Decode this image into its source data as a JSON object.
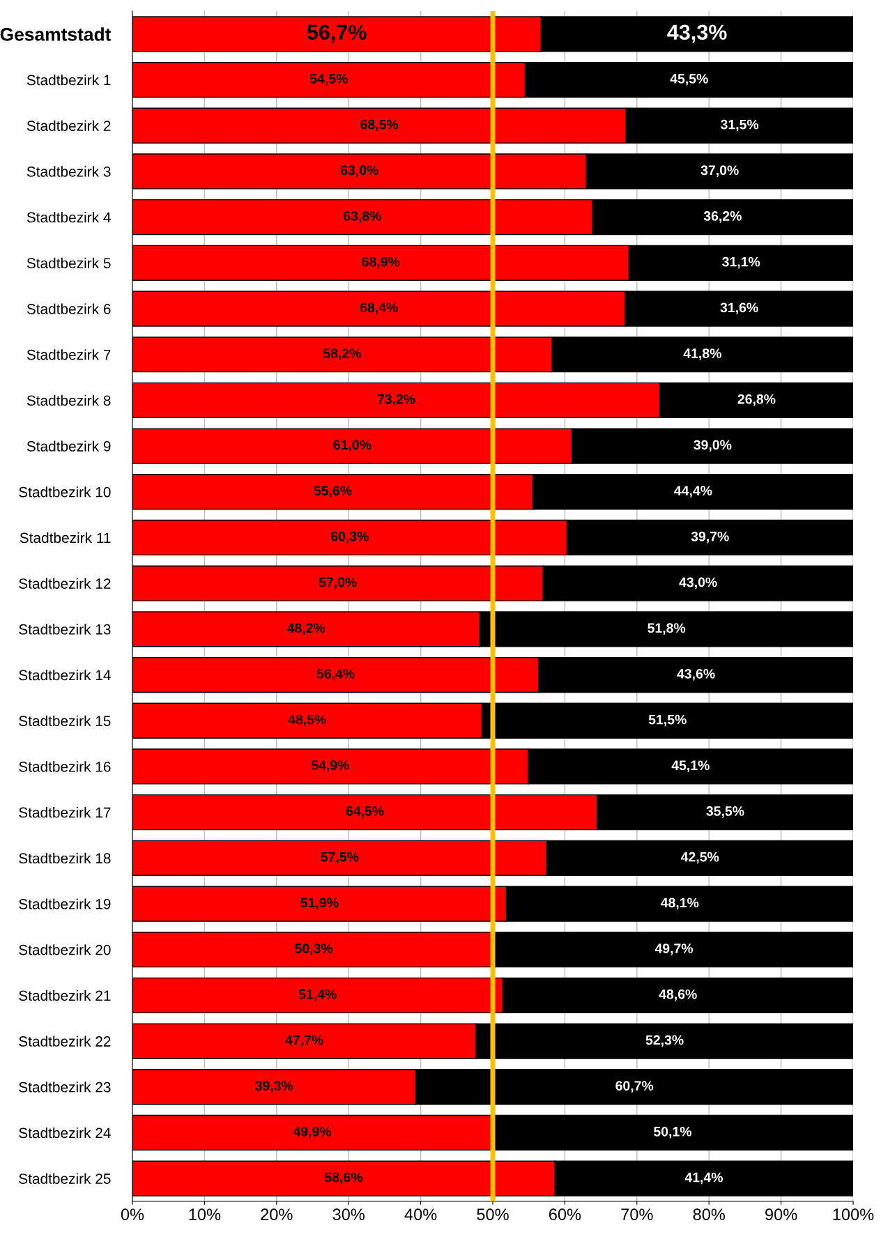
{
  "chart_data": {
    "type": "bar",
    "orientation": "horizontal",
    "stacked": true,
    "categories": [
      "Gesamtstadt",
      "Stadtbezirk 1",
      "Stadtbezirk 2",
      "Stadtbezirk 3",
      "Stadtbezirk 4",
      "Stadtbezirk 5",
      "Stadtbezirk 6",
      "Stadtbezirk 7",
      "Stadtbezirk 8",
      "Stadtbezirk 9",
      "Stadtbezirk 10",
      "Stadtbezirk 11",
      "Stadtbezirk 12",
      "Stadtbezirk 13",
      "Stadtbezirk 14",
      "Stadtbezirk 15",
      "Stadtbezirk 16",
      "Stadtbezirk 17",
      "Stadtbezirk 18",
      "Stadtbezirk 19",
      "Stadtbezirk 20",
      "Stadtbezirk 21",
      "Stadtbezirk 22",
      "Stadtbezirk 23",
      "Stadtbezirk 24",
      "Stadtbezirk 25"
    ],
    "series": [
      {
        "color": "#ff0000",
        "values": [
          56.7,
          54.5,
          68.5,
          63.0,
          63.8,
          68.9,
          68.4,
          58.2,
          73.2,
          61.0,
          55.6,
          60.3,
          57.0,
          48.2,
          56.4,
          48.5,
          54.9,
          64.5,
          57.5,
          51.9,
          50.3,
          51.4,
          47.7,
          39.3,
          49.9,
          58.6
        ],
        "value_labels": [
          "56,7%",
          "54,5%",
          "68,5%",
          "63,0%",
          "63,8%",
          "68,9%",
          "68,4%",
          "58,2%",
          "73,2%",
          "61,0%",
          "55,6%",
          "60,3%",
          "57,0%",
          "48,2%",
          "56,4%",
          "48,5%",
          "54,9%",
          "64,5%",
          "57,5%",
          "51,9%",
          "50,3%",
          "51,4%",
          "47,7%",
          "39,3%",
          "49,9%",
          "58,6%"
        ]
      },
      {
        "color": "#000000",
        "values": [
          43.3,
          45.5,
          31.5,
          37.0,
          36.2,
          31.1,
          31.6,
          41.8,
          26.8,
          39.0,
          44.4,
          39.7,
          43.0,
          51.8,
          43.6,
          51.5,
          45.1,
          35.5,
          42.5,
          48.1,
          49.7,
          48.6,
          52.3,
          60.7,
          50.1,
          41.4
        ],
        "value_labels": [
          "43,3%",
          "45,5%",
          "31,5%",
          "37,0%",
          "36,2%",
          "31,1%",
          "31,6%",
          "41,8%",
          "26,8%",
          "39,0%",
          "44,4%",
          "39,7%",
          "43,0%",
          "51,8%",
          "43,6%",
          "51,5%",
          "45,1%",
          "35,5%",
          "42,5%",
          "48,1%",
          "49,7%",
          "48,6%",
          "52,3%",
          "60,7%",
          "50,1%",
          "41,4%"
        ]
      }
    ],
    "xlim": [
      0,
      100
    ],
    "xticks": [
      {
        "value": 0,
        "label": "0%"
      },
      {
        "value": 10,
        "label": "10%"
      },
      {
        "value": 20,
        "label": "20%"
      },
      {
        "value": 30,
        "label": "30%"
      },
      {
        "value": 40,
        "label": "40%"
      },
      {
        "value": 50,
        "label": "50%"
      },
      {
        "value": 60,
        "label": "60%"
      },
      {
        "value": 70,
        "label": "70%"
      },
      {
        "value": 80,
        "label": "80%"
      },
      {
        "value": 90,
        "label": "90%"
      },
      {
        "value": 100,
        "label": "100%"
      }
    ],
    "grid": "x",
    "ref_lines": [
      {
        "axis": "x",
        "value": 50,
        "color": "#ffc000"
      }
    ]
  }
}
